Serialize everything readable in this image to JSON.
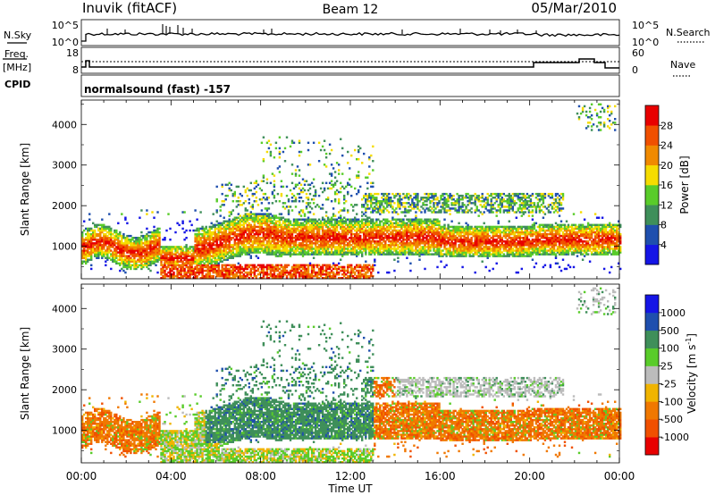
{
  "header": {
    "station": "Inuvik (fitACF)",
    "beam": "Beam 12",
    "date": "05/Mar/2010"
  },
  "left_labels": {
    "nsky": "N.Sky",
    "freq_line1": "Freq.",
    "freq_line2": "[MHz]",
    "cpid": "CPID"
  },
  "right_labels": {
    "nsearch": "N.Search",
    "nave": "Nave"
  },
  "cpid_text": "normalsound (fast) -157",
  "colors": {
    "power": [
      "#1515e6",
      "#1f4fae",
      "#3f8f5a",
      "#59cc2a",
      "#f5dc00",
      "#f08a00",
      "#f05000",
      "#e80000"
    ],
    "velocity": [
      "#e80000",
      "#f05000",
      "#f07800",
      "#f0b400",
      "#bcbcbc",
      "#59cc2a",
      "#3f8f5a",
      "#1f4fae",
      "#1515e6"
    ]
  },
  "chart_data": [
    {
      "type": "line",
      "name": "noise-panel",
      "left_ticks": [
        "10^5",
        "10^0"
      ],
      "right_ticks": [
        "10^5",
        "10^0"
      ],
      "series": [
        {
          "name": "N.Sky",
          "y_scale": "log"
        },
        {
          "name": "N.Search",
          "y_scale": "log"
        }
      ]
    },
    {
      "type": "line",
      "name": "frequency-panel",
      "left_ticks": [
        "18",
        "8"
      ],
      "right_ticks": [
        "60",
        "0"
      ],
      "series": [
        {
          "name": "Freq.",
          "unit": "MHz"
        },
        {
          "name": "Nave"
        }
      ]
    },
    {
      "type": "heatmap",
      "name": "power-panel",
      "ylabel": "Slant Range [km]",
      "y_ticks": [
        "1000",
        "2000",
        "3000",
        "4000"
      ],
      "ylim": [
        200,
        4600
      ],
      "xlim_hours": [
        0,
        24
      ],
      "colorbar_label": "Power [dB]",
      "colorbar_ticks": [
        "4",
        "8",
        "12",
        "16",
        "20",
        "24",
        "28"
      ],
      "colorbar_range": [
        0,
        32
      ]
    },
    {
      "type": "heatmap",
      "name": "velocity-panel",
      "ylabel": "Slant Range [km]",
      "y_ticks": [
        "1000",
        "2000",
        "3000",
        "4000"
      ],
      "ylim": [
        200,
        4600
      ],
      "xlim_hours": [
        0,
        24
      ],
      "colorbar_label": "Velocity [m s",
      "colorbar_label_sup": "-1",
      "colorbar_label_end": "]",
      "colorbar_ticks": [
        "1000",
        "500",
        "100",
        "25",
        "-25",
        "-100",
        "-500",
        "-1000"
      ]
    }
  ],
  "x_axis": {
    "ticks": [
      "00:00",
      "04:00",
      "08:00",
      "12:00",
      "16:00",
      "20:00",
      "00:00"
    ],
    "label": "Time UT"
  }
}
